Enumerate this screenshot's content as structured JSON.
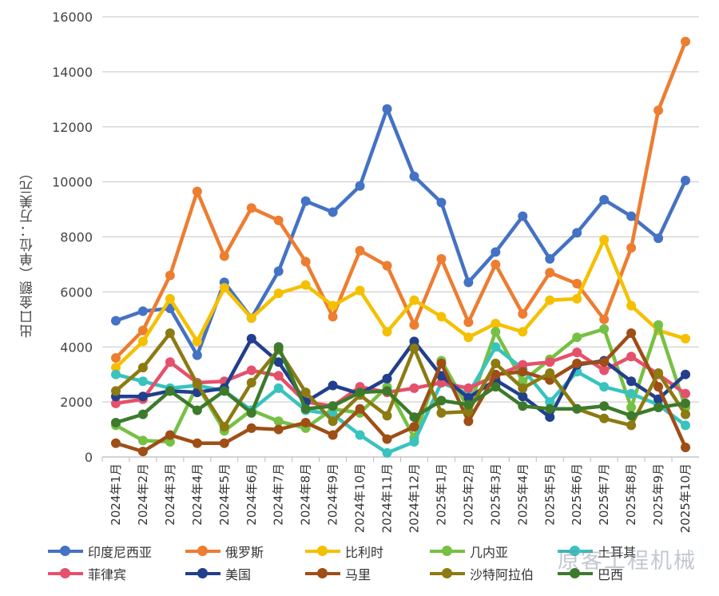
{
  "chart_data": {
    "type": "line",
    "ylabel": "出口金额（单位：万美元）",
    "ylim": [
      0,
      16000
    ],
    "yticks": [
      "0",
      "2000",
      "4000",
      "6000",
      "8000",
      "10000",
      "12000",
      "14000",
      "16000"
    ],
    "grid": true,
    "legend_position": "bottom",
    "categories": [
      "2024年1月",
      "2024年2月",
      "2024年3月",
      "2024年4月",
      "2024年5月",
      "2024年6月",
      "2024年7月",
      "2024年8月",
      "2024年9月",
      "2024年10月",
      "2024年11月",
      "2024年12月",
      "2025年1月",
      "2025年2月",
      "2025年3月",
      "2025年4月",
      "2025年5月",
      "2025年6月",
      "2025年7月",
      "2025年8月",
      "2025年9月",
      "2025年10月"
    ],
    "series": [
      {
        "name": "印度尼西亚",
        "color": "#4472C4",
        "values": [
          4950,
          5300,
          5400,
          3700,
          6350,
          5050,
          6750,
          9300,
          8900,
          9850,
          12650,
          10200,
          9250,
          6350,
          7450,
          8750,
          7200,
          8150,
          9350,
          8750,
          7950,
          10050
        ]
      },
      {
        "name": "俄罗斯",
        "color": "#ED7D31",
        "values": [
          3600,
          4600,
          6600,
          9650,
          7300,
          9050,
          8600,
          7100,
          5100,
          7500,
          6950,
          4800,
          7200,
          4900,
          7000,
          5200,
          6700,
          6300,
          5000,
          7600,
          12600,
          15100
        ]
      },
      {
        "name": "比利时",
        "color": "#F5C000",
        "values": [
          3250,
          4200,
          5750,
          4200,
          6150,
          5050,
          5950,
          6250,
          5500,
          6050,
          4550,
          5700,
          5100,
          4350,
          4850,
          4550,
          5700,
          5750,
          7900,
          5500,
          4600,
          4300
        ]
      },
      {
        "name": "几内亚",
        "color": "#76C043",
        "values": [
          1150,
          600,
          550,
          2600,
          950,
          1700,
          1300,
          1050,
          1750,
          1600,
          2550,
          700,
          3500,
          1750,
          4550,
          2750,
          3550,
          4350,
          4650,
          1800,
          4800,
          1800
        ]
      },
      {
        "name": "土耳其",
        "color": "#38C3BE",
        "values": [
          3000,
          2750,
          2500,
          2600,
          2400,
          1700,
          2500,
          1700,
          1550,
          800,
          150,
          550,
          2700,
          2300,
          4000,
          3200,
          2000,
          3100,
          2550,
          2300,
          1900,
          1150
        ]
      },
      {
        "name": "菲律宾",
        "color": "#E5506B",
        "values": [
          1950,
          2100,
          3450,
          2700,
          2750,
          3150,
          2950,
          2000,
          1850,
          2550,
          2350,
          2500,
          2700,
          2500,
          2950,
          3350,
          3450,
          3800,
          3150,
          3650,
          3000,
          2300
        ]
      },
      {
        "name": "美国",
        "color": "#213F8C",
        "values": [
          2200,
          2200,
          2400,
          2350,
          2500,
          4300,
          3450,
          2000,
          2600,
          2300,
          2850,
          4200,
          2950,
          2150,
          2800,
          2200,
          1450,
          3350,
          3500,
          2750,
          2100,
          3000
        ]
      },
      {
        "name": "马里",
        "color": "#9E4E16",
        "values": [
          500,
          200,
          800,
          500,
          500,
          1050,
          1000,
          1250,
          800,
          1750,
          650,
          1100,
          3400,
          1300,
          3000,
          3100,
          2800,
          3400,
          3450,
          4500,
          2550,
          350
        ]
      },
      {
        "name": "沙特阿拉伯",
        "color": "#8C7A12",
        "values": [
          2400,
          3250,
          4500,
          2650,
          1100,
          2700,
          3900,
          2350,
          1300,
          2250,
          1500,
          3950,
          1600,
          1650,
          3400,
          2500,
          3050,
          1750,
          1400,
          1150,
          3050,
          1550
        ]
      },
      {
        "name": "巴西",
        "color": "#3D7A2C",
        "values": [
          1250,
          1550,
          2400,
          1700,
          2400,
          1600,
          4000,
          1750,
          1850,
          2350,
          2400,
          1450,
          2050,
          1900,
          2550,
          1850,
          1750,
          1750,
          1850,
          1500,
          1800,
          1950
        ]
      }
    ]
  },
  "watermark": "原客工程机械"
}
